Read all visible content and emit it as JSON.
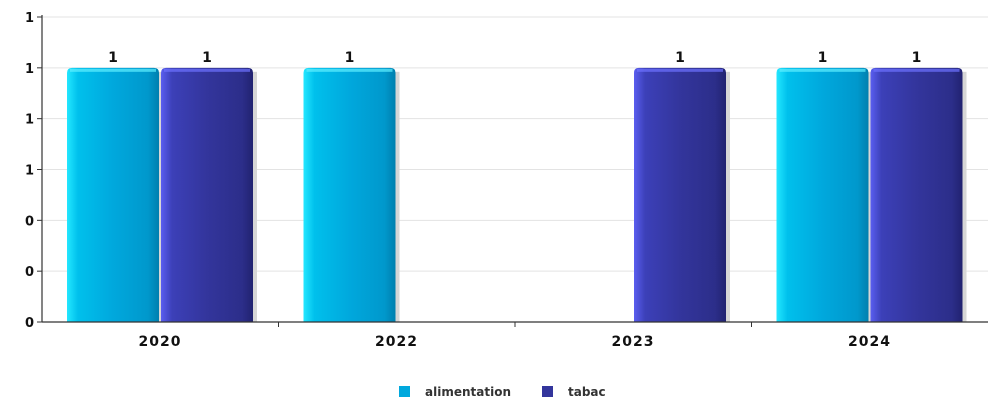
{
  "chart_data": {
    "type": "bar",
    "categories": [
      "2020",
      "2022",
      "2023",
      "2024"
    ],
    "series": [
      {
        "name": "alimentation",
        "values": [
          1,
          1,
          0,
          1
        ],
        "labels": [
          "1",
          "1",
          "",
          "1"
        ],
        "color": "#00a8dd"
      },
      {
        "name": "tabac",
        "values": [
          1,
          0,
          1,
          1
        ],
        "labels": [
          "1",
          "",
          "1",
          "1"
        ],
        "color": "#33359c"
      }
    ],
    "ylim": [
      0,
      1.2
    ],
    "yticks": [
      0,
      0.2,
      0.4,
      0.6,
      0.8,
      1.0,
      1.2
    ],
    "ytick_labels": [
      "0",
      "0",
      "0",
      "1",
      "1",
      "1",
      "1"
    ],
    "grid": true,
    "legend_position": "bottom-center"
  }
}
